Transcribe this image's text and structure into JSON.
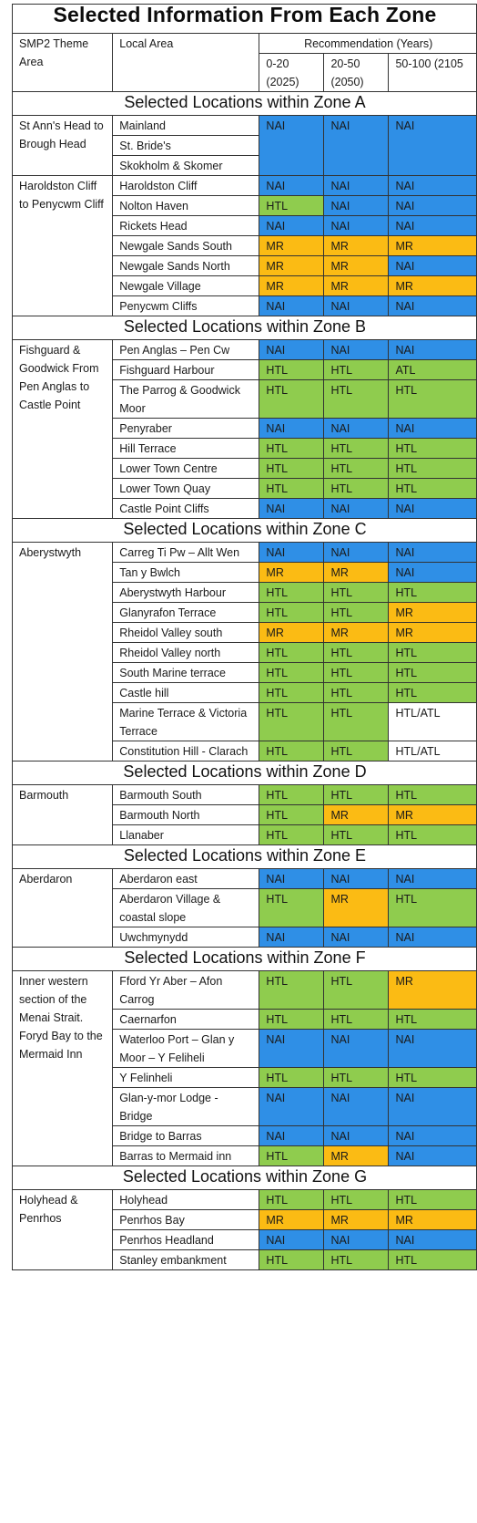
{
  "title": "Selected Information  From Each Zone",
  "headers": {
    "theme_area": "SMP2 Theme Area",
    "local_area": "Local Area",
    "recommendation": "Recommendation (Years)",
    "epoch_1": "0-20 (2025)",
    "epoch_2": "20-50 (2050)",
    "epoch_3": "50-100 (2105"
  },
  "colors": {
    "NAI": "#2f8fe6",
    "HTL": "#8fcc4e",
    "MR": "#fbbb14",
    "HTL/ATL": "#ffffff"
  },
  "zones": [
    {
      "heading": "Selected Locations within Zone A",
      "areas": [
        {
          "name": "St Ann's Head to Brough Head",
          "rows": [
            {
              "location": "Mainland",
              "rec": [
                "NAI",
                "NAI",
                "NAI"
              ]
            },
            {
              "location": "St. Bride's",
              "rec": [
                "",
                "",
                ""
              ]
            },
            {
              "location": "Skokholm & Skomer",
              "rec": [
                "",
                "",
                ""
              ]
            }
          ]
        },
        {
          "name": "Haroldston Cliff to Penycwm Cliff",
          "rows": [
            {
              "location": "Haroldston Cliff",
              "rec": [
                "NAI",
                "NAI",
                "NAI"
              ]
            },
            {
              "location": "Nolton Haven",
              "rec": [
                "HTL",
                "NAI",
                "NAI"
              ]
            },
            {
              "location": "Rickets Head",
              "rec": [
                "NAI",
                "NAI",
                "NAI"
              ]
            },
            {
              "location": "Newgale Sands South",
              "rec": [
                "MR",
                "MR",
                "MR"
              ]
            },
            {
              "location": "Newgale Sands North",
              "rec": [
                "MR",
                "MR",
                "NAI"
              ]
            },
            {
              "location": "Newgale Village",
              "rec": [
                "MR",
                "MR",
                "MR"
              ]
            },
            {
              "location": "Penycwm Cliffs",
              "rec": [
                "NAI",
                "NAI",
                "NAI"
              ]
            }
          ]
        }
      ]
    },
    {
      "heading": "Selected Locations within Zone B",
      "areas": [
        {
          "name": "Fishguard & Goodwick From Pen Anglas to Castle Point",
          "rows": [
            {
              "location": "Pen Anglas – Pen Cw",
              "rec": [
                "NAI",
                "NAI",
                "NAI"
              ]
            },
            {
              "location": "Fishguard Harbour",
              "rec": [
                "HTL",
                "HTL",
                "ATL"
              ]
            },
            {
              "location": "The Parrog & Goodwick Moor",
              "rec": [
                "HTL",
                "HTL",
                "HTL"
              ]
            },
            {
              "location": "Penyraber",
              "rec": [
                "NAI",
                "NAI",
                "NAI"
              ]
            },
            {
              "location": "Hill Terrace",
              "rec": [
                "HTL",
                "HTL",
                "HTL"
              ]
            },
            {
              "location": "Lower Town Centre",
              "rec": [
                "HTL",
                "HTL",
                "HTL"
              ]
            },
            {
              "location": "Lower Town Quay",
              "rec": [
                "HTL",
                "HTL",
                "HTL"
              ]
            },
            {
              "location": "Castle Point Cliffs",
              "rec": [
                "NAI",
                "NAI",
                "NAI"
              ]
            }
          ]
        }
      ]
    },
    {
      "heading": "Selected Locations within Zone C",
      "areas": [
        {
          "name": "Aberystwyth",
          "rows": [
            {
              "location": "Carreg Ti Pw – Allt Wen",
              "rec": [
                "NAI",
                "NAI",
                "NAI"
              ]
            },
            {
              "location": "Tan y Bwlch",
              "rec": [
                "MR",
                "MR",
                "NAI"
              ]
            },
            {
              "location": "Aberystwyth Harbour",
              "rec": [
                "HTL",
                "HTL",
                "HTL"
              ]
            },
            {
              "location": "Glanyrafon Terrace",
              "rec": [
                "HTL",
                "HTL",
                "MR"
              ]
            },
            {
              "location": "Rheidol Valley south",
              "rec": [
                "MR",
                "MR",
                "MR"
              ]
            },
            {
              "location": "Rheidol Valley north",
              "rec": [
                "HTL",
                "HTL",
                "HTL"
              ]
            },
            {
              "location": "South Marine terrace",
              "rec": [
                "HTL",
                "HTL",
                "HTL"
              ]
            },
            {
              "location": "Castle hill",
              "rec": [
                "HTL",
                "HTL",
                "HTL"
              ]
            },
            {
              "location": "Marine Terrace & Victoria Terrace",
              "rec": [
                "HTL",
                "HTL",
                "HTL/ATL"
              ]
            },
            {
              "location": "Constitution Hill - Clarach",
              "rec": [
                "HTL",
                "HTL",
                "HTL/ATL"
              ]
            }
          ]
        }
      ]
    },
    {
      "heading": "Selected Locations within Zone D",
      "areas": [
        {
          "name": "Barmouth",
          "rows": [
            {
              "location": "Barmouth South",
              "rec": [
                "HTL",
                "HTL",
                "HTL"
              ]
            },
            {
              "location": "Barmouth North",
              "rec": [
                "HTL",
                "MR",
                "MR"
              ]
            },
            {
              "location": "Llanaber",
              "rec": [
                "HTL",
                "HTL",
                "HTL"
              ]
            }
          ]
        }
      ]
    },
    {
      "heading": "Selected Locations within Zone E",
      "areas": [
        {
          "name": "Aberdaron",
          "rows": [
            {
              "location": "Aberdaron east",
              "rec": [
                "NAI",
                "NAI",
                "NAI"
              ]
            },
            {
              "location": "Aberdaron Village & coastal slope",
              "rec": [
                "HTL",
                "MR",
                "HTL"
              ]
            },
            {
              "location": "Uwchmynydd",
              "rec": [
                "NAI",
                "NAI",
                "NAI"
              ]
            }
          ]
        }
      ]
    },
    {
      "heading": "Selected Locations within Zone F",
      "areas": [
        {
          "name": "Inner western section of the Menai Strait. Foryd Bay to the Mermaid Inn",
          "rows": [
            {
              "location": "Fford Yr Aber – Afon Carrog",
              "rec": [
                "HTL",
                "HTL",
                "MR"
              ]
            },
            {
              "location": "Caernarfon",
              "rec": [
                "HTL",
                "HTL",
                "HTL"
              ]
            },
            {
              "location": "Waterloo Port – Glan y Moor – Y Feliheli",
              "rec": [
                "NAI",
                "NAI",
                "NAI"
              ]
            },
            {
              "location": "Y Felinheli",
              "rec": [
                "HTL",
                "HTL",
                "HTL"
              ]
            },
            {
              "location": "Glan-y-mor Lodge - Bridge",
              "rec": [
                "NAI",
                "NAI",
                "NAI"
              ]
            },
            {
              "location": "Bridge to Barras",
              "rec": [
                "NAI",
                "NAI",
                "NAI"
              ]
            },
            {
              "location": "Barras to Mermaid inn",
              "rec": [
                "HTL",
                "MR",
                "NAI"
              ]
            }
          ]
        }
      ]
    },
    {
      "heading": "Selected Locations within Zone G",
      "areas": [
        {
          "name": "Holyhead & Penrhos",
          "rows": [
            {
              "location": "Holyhead",
              "rec": [
                "HTL",
                "HTL",
                "HTL"
              ]
            },
            {
              "location": "Penrhos Bay",
              "rec": [
                "MR",
                "MR",
                "MR"
              ]
            },
            {
              "location": "Penrhos Headland",
              "rec": [
                "NAI",
                "NAI",
                "NAI"
              ]
            },
            {
              "location": "Stanley embankment",
              "rec": [
                "HTL",
                "HTL",
                "HTL"
              ]
            }
          ]
        }
      ]
    }
  ]
}
